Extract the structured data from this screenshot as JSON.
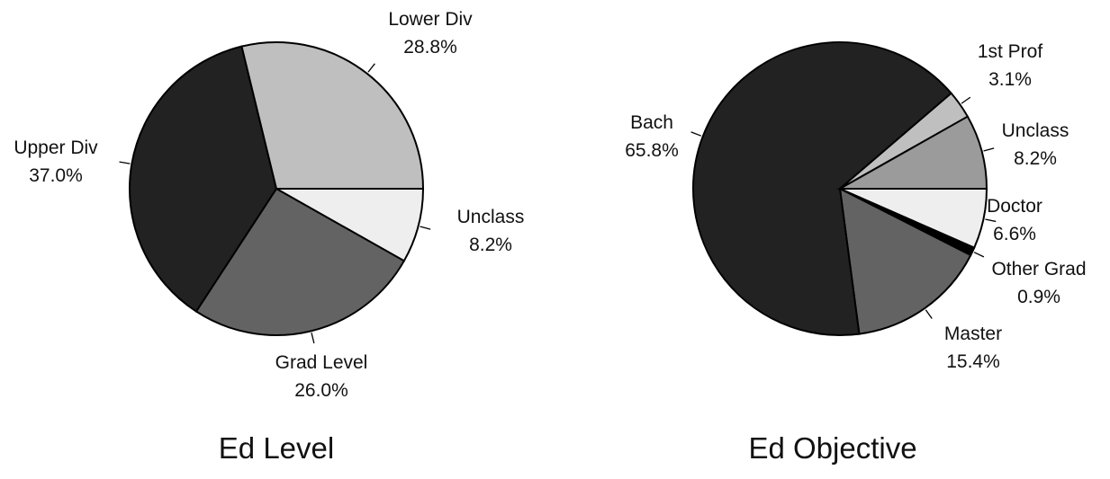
{
  "chart_data": [
    {
      "type": "pie",
      "title": "Ed Level",
      "slices": [
        {
          "label": "Unclass",
          "value_label": "8.2%",
          "value": 8.2,
          "color": "#eeeeee"
        },
        {
          "label": "Grad Level",
          "value_label": "26.0%",
          "value": 26.0,
          "color": "#636363"
        },
        {
          "label": "Upper Div",
          "value_label": "37.0%",
          "value": 37.0,
          "color": "#222222"
        },
        {
          "label": "Lower Div",
          "value_label": "28.8%",
          "value": 28.8,
          "color": "#bfbfbf"
        }
      ]
    },
    {
      "type": "pie",
      "title": "Ed Objective",
      "slices": [
        {
          "label": "Doctor",
          "value_label": "6.6%",
          "value": 6.6,
          "color": "#eeeeee"
        },
        {
          "label": "Other Grad",
          "value_label": "0.9%",
          "value": 0.9,
          "color": "#000000"
        },
        {
          "label": "Master",
          "value_label": "15.4%",
          "value": 15.4,
          "color": "#636363"
        },
        {
          "label": "Bach",
          "value_label": "65.8%",
          "value": 65.8,
          "color": "#222222"
        },
        {
          "label": "1st Prof",
          "value_label": "3.1%",
          "value": 3.1,
          "color": "#bfbfbf"
        },
        {
          "label": "Unclass",
          "value_label": "8.2%",
          "value": 8.2,
          "color": "#9b9b9b"
        }
      ]
    }
  ]
}
